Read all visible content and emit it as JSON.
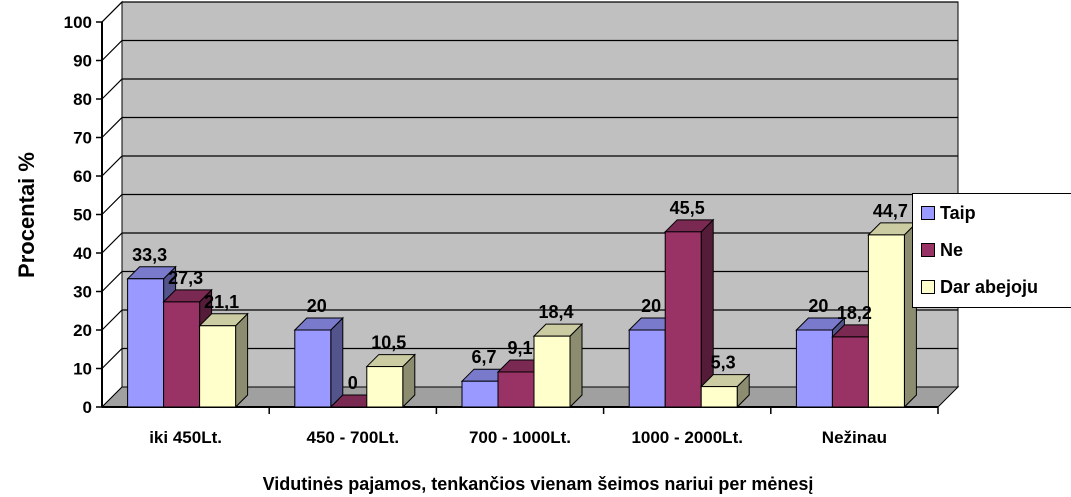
{
  "chart_data": {
    "type": "bar",
    "categories": [
      "iki 450Lt.",
      "450 - 700Lt.",
      "700 - 1000Lt.",
      "1000 - 2000Lt.",
      "Nežinau"
    ],
    "series": [
      {
        "name": "Taip",
        "values": [
          33.3,
          20,
          6.7,
          20,
          20
        ],
        "labels": [
          "33,3",
          "20",
          "6,7",
          "20",
          "20"
        ],
        "color": "#9999FF"
      },
      {
        "name": "Ne",
        "values": [
          27.3,
          0,
          9.1,
          45.5,
          18.2
        ],
        "labels": [
          "27,3",
          "0",
          "9,1",
          "45,5",
          "18,2"
        ],
        "color": "#993366"
      },
      {
        "name": "Dar abejoju",
        "values": [
          21.1,
          10.5,
          18.4,
          5.3,
          44.7
        ],
        "labels": [
          "21,1",
          "10,5",
          "18,4",
          "5,3",
          "44,7"
        ],
        "color": "#FFFFCC"
      }
    ],
    "yticks": [
      "0",
      "10",
      "20",
      "30",
      "40",
      "50",
      "60",
      "70",
      "80",
      "90",
      "100"
    ],
    "ylim": [
      0,
      100
    ],
    "xlabel": "Vidutinės pajamos, tenkančios vienam šeimos nariui per mėnesį",
    "ylabel": "Procentai %",
    "title": "",
    "grid": true,
    "legend_position": "right",
    "wall_color": "#C0C0C0"
  }
}
